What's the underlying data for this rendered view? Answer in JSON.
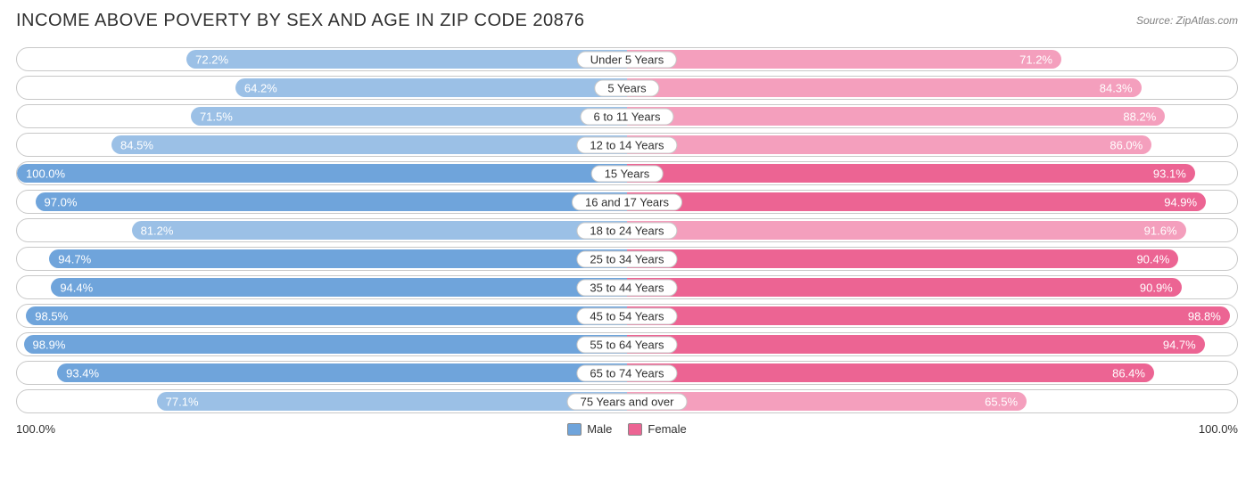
{
  "title": "INCOME ABOVE POVERTY BY SEX AND AGE IN ZIP CODE 20876",
  "source": "Source: ZipAtlas.com",
  "axis_max_label_left": "100.0%",
  "axis_max_label_right": "100.0%",
  "colors": {
    "male": "#6fa4db",
    "male_light": "#9bc0e6",
    "female": "#ec6493",
    "female_light": "#f49fbd",
    "row_border": "#c8c8c8",
    "background": "#ffffff",
    "title_text": "#303030",
    "source_text": "#808080",
    "value_text": "#ffffff"
  },
  "legend": {
    "male_label": "Male",
    "female_label": "Female"
  },
  "chart": {
    "type": "diverging-bar",
    "xlim_left": [
      0,
      100
    ],
    "xlim_right": [
      0,
      100
    ],
    "rows": [
      {
        "label": "Under 5 Years",
        "male": 72.2,
        "female": 71.2,
        "shade": "light"
      },
      {
        "label": "5 Years",
        "male": 64.2,
        "female": 84.3,
        "shade": "light"
      },
      {
        "label": "6 to 11 Years",
        "male": 71.5,
        "female": 88.2,
        "shade": "light"
      },
      {
        "label": "12 to 14 Years",
        "male": 84.5,
        "female": 86.0,
        "shade": "light"
      },
      {
        "label": "15 Years",
        "male": 100.0,
        "female": 93.1,
        "shade": "normal"
      },
      {
        "label": "16 and 17 Years",
        "male": 97.0,
        "female": 94.9,
        "shade": "normal"
      },
      {
        "label": "18 to 24 Years",
        "male": 81.2,
        "female": 91.6,
        "shade": "light"
      },
      {
        "label": "25 to 34 Years",
        "male": 94.7,
        "female": 90.4,
        "shade": "normal"
      },
      {
        "label": "35 to 44 Years",
        "male": 94.4,
        "female": 90.9,
        "shade": "normal"
      },
      {
        "label": "45 to 54 Years",
        "male": 98.5,
        "female": 98.8,
        "shade": "normal"
      },
      {
        "label": "55 to 64 Years",
        "male": 98.9,
        "female": 94.7,
        "shade": "normal"
      },
      {
        "label": "65 to 74 Years",
        "male": 93.4,
        "female": 86.4,
        "shade": "normal"
      },
      {
        "label": "75 Years and over",
        "male": 77.1,
        "female": 65.5,
        "shade": "light"
      }
    ]
  }
}
